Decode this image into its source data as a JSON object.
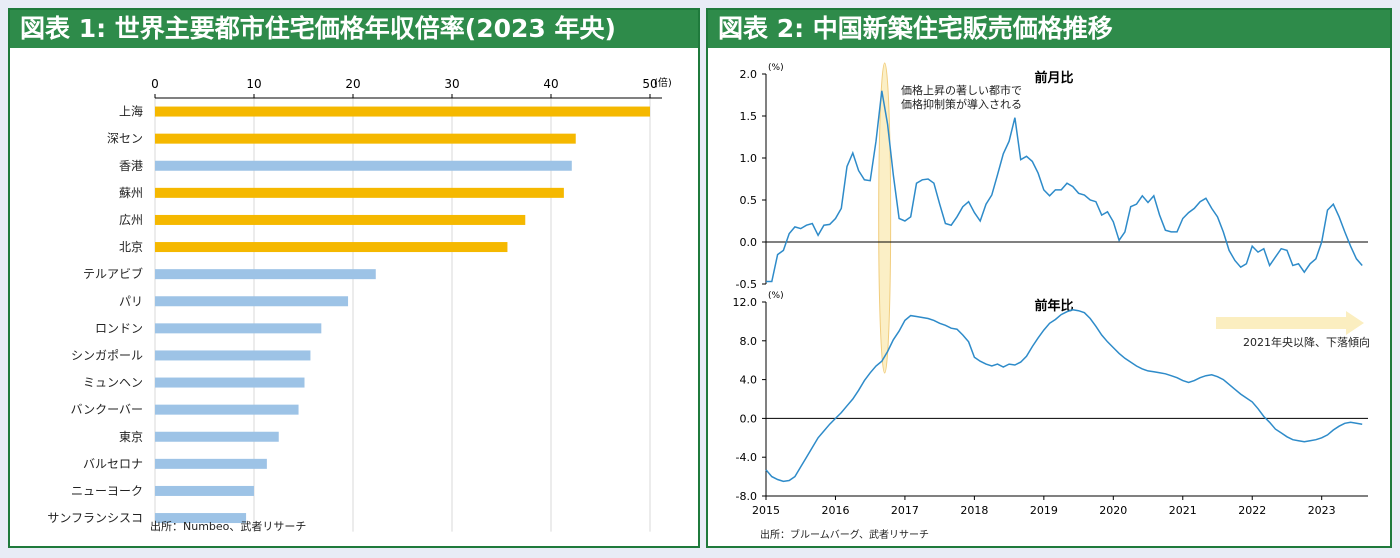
{
  "panel1": {
    "title": "図表 1: 世界主要都市住宅価格年収倍率(2023 年央)",
    "source": "出所：Numbeo、武者リサーチ"
  },
  "panel2": {
    "title": "図表 2: 中国新築住宅販売価格推移",
    "source": "出所：ブルームバーグ、武者リサーチ"
  },
  "colors": {
    "highlight_bar": "#f5b800",
    "other_bar": "#9dc3e6",
    "line": "#2e8bc9",
    "header_bg": "#2e8b4a",
    "annotation": "#fbeec0"
  },
  "chart_data": [
    {
      "type": "bar",
      "orientation": "horizontal",
      "title": "世界主要都市住宅価格年収倍率(2023 年央)",
      "unit": "(倍)",
      "xlim": [
        0,
        50
      ],
      "xticks": [
        0,
        10,
        20,
        30,
        40,
        50
      ],
      "grid": true,
      "highlight_color_for": [
        "上海",
        "深セン",
        "蘇州",
        "広州",
        "北京"
      ],
      "categories": [
        "上海",
        "深セン",
        "香港",
        "蘇州",
        "広州",
        "北京",
        "テルアビブ",
        "パリ",
        "ロンドン",
        "シンガポール",
        "ミュンヘン",
        "バンクーバー",
        "東京",
        "バルセロナ",
        "ニューヨーク",
        "サンフランシスコ"
      ],
      "values": [
        50.0,
        42.5,
        42.1,
        41.3,
        37.4,
        35.6,
        22.3,
        19.5,
        16.8,
        15.7,
        15.1,
        14.5,
        12.5,
        11.3,
        10.0,
        9.2
      ]
    },
    {
      "type": "line",
      "title": "前月比",
      "unit": "(%)",
      "ylim": [
        -0.5,
        2.0
      ],
      "yticks": [
        -0.5,
        0.0,
        0.5,
        1.0,
        1.5,
        2.0
      ],
      "ytick_labels": [
        "-0.5",
        "0.0",
        "0.5",
        "1.0",
        "1.5",
        "2.0"
      ],
      "annotation": "価格上昇の著しい都市で\n価格抑制策が導入される",
      "x_start": "2015-01",
      "values": [
        -0.47,
        -0.47,
        -0.15,
        -0.1,
        0.1,
        0.18,
        0.16,
        0.2,
        0.22,
        0.08,
        0.2,
        0.21,
        0.28,
        0.4,
        0.9,
        1.06,
        0.85,
        0.74,
        0.73,
        1.2,
        1.8,
        1.4,
        0.8,
        0.28,
        0.25,
        0.3,
        0.7,
        0.74,
        0.75,
        0.7,
        0.45,
        0.22,
        0.2,
        0.3,
        0.42,
        0.48,
        0.35,
        0.25,
        0.45,
        0.56,
        0.8,
        1.05,
        1.2,
        1.48,
        0.98,
        1.02,
        0.96,
        0.82,
        0.62,
        0.55,
        0.62,
        0.62,
        0.7,
        0.66,
        0.58,
        0.56,
        0.5,
        0.48,
        0.32,
        0.36,
        0.24,
        0.02,
        0.12,
        0.42,
        0.45,
        0.55,
        0.47,
        0.55,
        0.32,
        0.14,
        0.12,
        0.12,
        0.28,
        0.35,
        0.4,
        0.48,
        0.52,
        0.4,
        0.3,
        0.12,
        -0.1,
        -0.22,
        -0.3,
        -0.26,
        -0.05,
        -0.12,
        -0.08,
        -0.28,
        -0.18,
        -0.08,
        -0.1,
        -0.28,
        -0.26,
        -0.36,
        -0.26,
        -0.2,
        0.0,
        0.38,
        0.45,
        0.3,
        0.12,
        -0.05,
        -0.2,
        -0.28
      ]
    },
    {
      "type": "line",
      "title": "前年比",
      "unit": "(%)",
      "ylim": [
        -8.0,
        12.0
      ],
      "yticks": [
        -8.0,
        -4.0,
        0.0,
        4.0,
        8.0,
        12.0
      ],
      "ytick_labels": [
        "-8.0",
        "-4.0",
        "0.0",
        "4.0",
        "8.0",
        "12.0"
      ],
      "xticks": [
        "2015",
        "2016",
        "2017",
        "2018",
        "2019",
        "2020",
        "2021",
        "2022",
        "2023"
      ],
      "annotation": "2021年央以降、下落傾向",
      "x_start": "2015-01",
      "values": [
        -5.3,
        -6.0,
        -6.3,
        -6.5,
        -6.4,
        -6.0,
        -5.0,
        -4.0,
        -3.0,
        -2.0,
        -1.3,
        -0.6,
        0.0,
        0.6,
        1.3,
        2.0,
        2.9,
        3.9,
        4.7,
        5.4,
        5.9,
        6.9,
        8.1,
        9.0,
        10.1,
        10.6,
        10.5,
        10.4,
        10.3,
        10.1,
        9.8,
        9.6,
        9.3,
        9.2,
        8.6,
        7.9,
        6.3,
        5.9,
        5.6,
        5.4,
        5.6,
        5.3,
        5.6,
        5.5,
        5.8,
        6.4,
        7.4,
        8.3,
        9.1,
        9.8,
        10.2,
        10.7,
        11.0,
        11.2,
        11.1,
        10.9,
        10.3,
        9.5,
        8.6,
        7.9,
        7.3,
        6.7,
        6.2,
        5.8,
        5.4,
        5.1,
        4.9,
        4.8,
        4.7,
        4.6,
        4.4,
        4.2,
        3.9,
        3.7,
        3.9,
        4.2,
        4.4,
        4.5,
        4.3,
        4.0,
        3.5,
        3.0,
        2.5,
        2.1,
        1.7,
        1.0,
        0.2,
        -0.4,
        -1.1,
        -1.5,
        -1.9,
        -2.2,
        -2.3,
        -2.4,
        -2.3,
        -2.2,
        -2.0,
        -1.7,
        -1.2,
        -0.8,
        -0.5,
        -0.4,
        -0.5,
        -0.6
      ]
    }
  ]
}
